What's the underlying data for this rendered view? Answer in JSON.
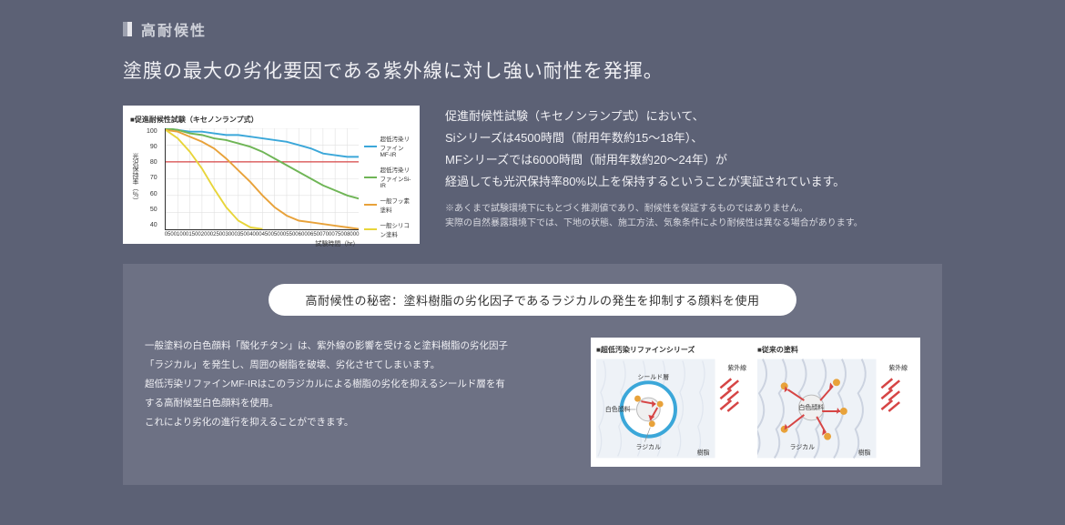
{
  "section": {
    "title": "高耐候性",
    "headline": "塗膜の最大の劣化要因である紫外線に対し強い耐性を発揮。"
  },
  "chart": {
    "type": "line",
    "caption": "■促進耐候性試験（キセノンランプ式）",
    "ylabel": "光沢保持率（％）",
    "xlabel": "試験時間（hr）",
    "ylim": [
      40,
      100
    ],
    "ytick_step": 10,
    "yticks": [
      "100",
      "90",
      "80",
      "70",
      "60",
      "50",
      "40"
    ],
    "xlim": [
      0,
      8000
    ],
    "xtick_step": 500,
    "xticks": [
      "0",
      "500",
      "1000",
      "1500",
      "2000",
      "2500",
      "3000",
      "3500",
      "4000",
      "4500",
      "5000",
      "5500",
      "6000",
      "6500",
      "7000",
      "7500",
      "8000"
    ],
    "grid_color": "#e0e0e0",
    "threshold_line": {
      "y": 80,
      "color": "#d64545"
    },
    "background_color": "#ffffff",
    "line_width": 1.6,
    "series": [
      {
        "name": "超低汚染リファインMF-IR",
        "color": "#3ba7d9",
        "points": [
          [
            0,
            100
          ],
          [
            500,
            99
          ],
          [
            1000,
            98
          ],
          [
            1500,
            98
          ],
          [
            2000,
            97
          ],
          [
            2500,
            96
          ],
          [
            3000,
            96
          ],
          [
            3500,
            95
          ],
          [
            4000,
            94
          ],
          [
            4500,
            93
          ],
          [
            5000,
            92
          ],
          [
            5500,
            90
          ],
          [
            6000,
            88
          ],
          [
            6500,
            85
          ],
          [
            7000,
            84
          ],
          [
            7500,
            83
          ],
          [
            8000,
            83
          ]
        ]
      },
      {
        "name": "超低汚染リファインSi-IR",
        "color": "#6fb556",
        "points": [
          [
            0,
            100
          ],
          [
            500,
            99
          ],
          [
            1000,
            97
          ],
          [
            1500,
            96
          ],
          [
            2000,
            94
          ],
          [
            2500,
            93
          ],
          [
            3000,
            91
          ],
          [
            3500,
            89
          ],
          [
            4000,
            86
          ],
          [
            4500,
            82
          ],
          [
            5000,
            78
          ],
          [
            5500,
            74
          ],
          [
            6000,
            70
          ],
          [
            6500,
            66
          ],
          [
            7000,
            63
          ],
          [
            7500,
            60
          ],
          [
            8000,
            58
          ]
        ]
      },
      {
        "name": "一般フッ素塗料",
        "color": "#e8a23a",
        "points": [
          [
            0,
            99
          ],
          [
            500,
            98
          ],
          [
            1000,
            95
          ],
          [
            1500,
            92
          ],
          [
            2000,
            88
          ],
          [
            2500,
            82
          ],
          [
            3000,
            75
          ],
          [
            3500,
            68
          ],
          [
            4000,
            60
          ],
          [
            4500,
            53
          ],
          [
            5000,
            48
          ],
          [
            5500,
            45
          ],
          [
            6000,
            44
          ],
          [
            6500,
            43
          ],
          [
            7000,
            42
          ],
          [
            7500,
            41
          ],
          [
            8000,
            40
          ]
        ]
      },
      {
        "name": "一般シリコン塗料",
        "color": "#e8d53a",
        "points": [
          [
            0,
            99
          ],
          [
            500,
            94
          ],
          [
            1000,
            86
          ],
          [
            1500,
            76
          ],
          [
            2000,
            64
          ],
          [
            2500,
            53
          ],
          [
            3000,
            45
          ],
          [
            3500,
            41
          ],
          [
            4000,
            40
          ]
        ]
      }
    ]
  },
  "description": {
    "body": "促進耐候性試験（キセノンランプ式）において、\nSiシリーズは4500時間（耐用年数約15～18年）、\nMFシリーズでは6000時間（耐用年数約20～24年）が\n経過しても光沢保持率80%以上を保持するということが実証されています。",
    "note": "※あくまで試験環境下にもとづく推測値であり、耐候性を保証するものではありません。\n実際の自然暴露環境下では、下地の状態、施工方法、気象条件により耐候性は異なる場合があります。"
  },
  "panel": {
    "pill": "高耐候性の秘密：塗料樹脂の劣化因子であるラジカルの発生を抑制する顔料を使用",
    "text_lines": [
      "一般塗料の白色顔料「酸化チタン」は、紫外線の影響を受けると塗料樹脂の劣化因子",
      "「ラジカル」を発生し、周囲の樹脂を破壊、劣化させてしまいます。",
      "超低汚染リファインMF-IRはこのラジカルによる樹脂の劣化を抑えるシールド層を有",
      "する高耐候型白色顔料を使用。",
      "これにより劣化の進行を抑えることができます。"
    ]
  },
  "diagram": {
    "left": {
      "title": "■超低汚染リファインシリーズ",
      "uv_label": "紫外線",
      "labels": {
        "shield": "シールド層",
        "pigment": "白色顔料",
        "radical": "ラジカル",
        "resin": "樹脂"
      },
      "colors": {
        "ring": "#3ba7d9",
        "core": "#f0f0f0",
        "radical": "#e8a23a",
        "arrow": "#d64545",
        "bg_crack": "#e0e6ef"
      }
    },
    "right": {
      "title": "■従来の塗料",
      "uv_label": "紫外線",
      "labels": {
        "pigment": "白色顔料",
        "radical": "ラジカル",
        "resin": "樹脂"
      },
      "colors": {
        "core": "#f0f0f0",
        "radical": "#e8a23a",
        "arrow": "#d64545",
        "bg_crack": "#d8dde8"
      }
    }
  }
}
